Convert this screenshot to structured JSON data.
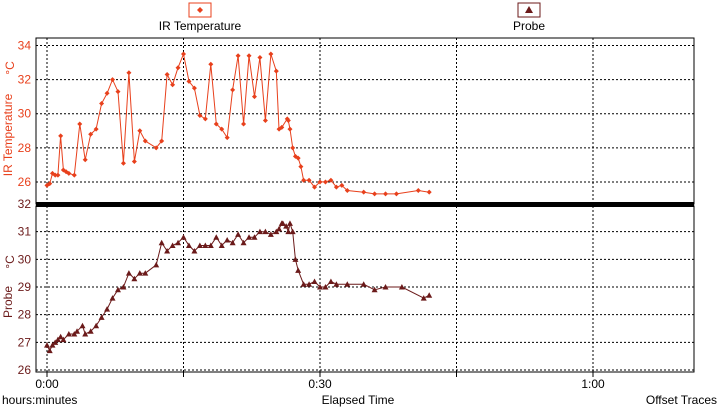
{
  "chart_data": [
    {
      "type": "line",
      "legend_label": "IR Temperature",
      "ylabel": "IR Temperature",
      "yunit": "°C",
      "color": "#e8401c",
      "marker": "diamond",
      "xlim": [
        0,
        1.2
      ],
      "ylim": [
        25,
        34.5
      ],
      "yticks": [
        "26",
        "28",
        "30",
        "32",
        "34"
      ],
      "grid": true,
      "x": [
        0.0,
        0.005,
        0.01,
        0.015,
        0.02,
        0.025,
        0.03,
        0.035,
        0.04,
        0.05,
        0.06,
        0.07,
        0.08,
        0.09,
        0.1,
        0.11,
        0.12,
        0.13,
        0.14,
        0.15,
        0.16,
        0.17,
        0.18,
        0.2,
        0.21,
        0.22,
        0.23,
        0.24,
        0.25,
        0.26,
        0.27,
        0.28,
        0.29,
        0.3,
        0.31,
        0.32,
        0.33,
        0.34,
        0.35,
        0.36,
        0.37,
        0.38,
        0.39,
        0.4,
        0.41,
        0.42,
        0.425,
        0.43,
        0.44,
        0.442,
        0.445,
        0.45,
        0.455,
        0.46,
        0.465,
        0.47,
        0.48,
        0.49,
        0.5,
        0.51,
        0.52,
        0.53,
        0.54,
        0.55,
        0.58,
        0.6,
        0.62,
        0.64,
        0.68,
        0.7
      ],
      "y": [
        25.8,
        25.9,
        26.5,
        26.4,
        26.4,
        28.7,
        26.7,
        26.6,
        26.5,
        26.4,
        29.4,
        27.3,
        28.8,
        29.1,
        30.6,
        31.2,
        32.0,
        31.3,
        27.1,
        32.4,
        27.2,
        29.0,
        28.4,
        28.0,
        28.4,
        32.3,
        31.7,
        32.7,
        33.5,
        31.9,
        31.5,
        29.9,
        29.7,
        32.9,
        29.4,
        29.1,
        28.6,
        31.4,
        33.4,
        29.4,
        33.4,
        31.0,
        33.3,
        29.6,
        33.5,
        32.5,
        29.1,
        29.2,
        29.7,
        29.6,
        29.1,
        28.0,
        27.5,
        27.4,
        26.9,
        26.1,
        26.1,
        25.7,
        26.0,
        26.0,
        26.1,
        25.7,
        25.8,
        25.5,
        25.4,
        25.3,
        25.3,
        25.3,
        25.5,
        25.4
      ]
    },
    {
      "type": "line",
      "legend_label": "Probe",
      "ylabel": "Probe",
      "yunit": "°C",
      "color": "#6b1a1a",
      "marker": "triangle",
      "xlim": [
        0,
        1.2
      ],
      "ylim": [
        26,
        32
      ],
      "yticks": [
        "26",
        "27",
        "28",
        "29",
        "30",
        "31",
        "32"
      ],
      "grid": true,
      "x": [
        0.0,
        0.005,
        0.01,
        0.015,
        0.02,
        0.025,
        0.03,
        0.04,
        0.05,
        0.055,
        0.065,
        0.07,
        0.08,
        0.09,
        0.1,
        0.11,
        0.12,
        0.13,
        0.14,
        0.15,
        0.16,
        0.17,
        0.18,
        0.2,
        0.21,
        0.22,
        0.23,
        0.24,
        0.25,
        0.26,
        0.27,
        0.28,
        0.29,
        0.3,
        0.31,
        0.32,
        0.33,
        0.34,
        0.35,
        0.36,
        0.37,
        0.38,
        0.39,
        0.4,
        0.41,
        0.42,
        0.425,
        0.43,
        0.432,
        0.438,
        0.442,
        0.445,
        0.45,
        0.455,
        0.46,
        0.47,
        0.48,
        0.49,
        0.5,
        0.51,
        0.52,
        0.53,
        0.55,
        0.58,
        0.6,
        0.62,
        0.65,
        0.69,
        0.7
      ],
      "y": [
        26.9,
        26.7,
        26.9,
        27.0,
        27.1,
        27.2,
        27.1,
        27.3,
        27.3,
        27.4,
        27.6,
        27.3,
        27.4,
        27.6,
        27.9,
        28.2,
        28.6,
        28.9,
        29.0,
        29.5,
        29.3,
        29.5,
        29.5,
        29.8,
        30.6,
        30.3,
        30.5,
        30.6,
        30.8,
        30.5,
        30.3,
        30.5,
        30.5,
        30.5,
        30.8,
        30.5,
        30.7,
        30.6,
        30.9,
        30.6,
        30.8,
        30.8,
        31.0,
        31.0,
        30.9,
        31.0,
        31.1,
        31.3,
        31.3,
        31.2,
        31.0,
        31.3,
        31.0,
        30.0,
        29.6,
        29.1,
        29.1,
        29.2,
        29.0,
        29.0,
        29.2,
        29.1,
        29.1,
        29.1,
        28.9,
        29.0,
        29.0,
        28.6,
        28.7
      ]
    }
  ],
  "xaxis": {
    "label_left": "hours:minutes",
    "label_center": "Elapsed Time",
    "label_right": "Offset Traces",
    "ticks": [
      "0:00",
      "0:30",
      "1:00"
    ],
    "tick_values": [
      0,
      0.5,
      1.0
    ]
  }
}
